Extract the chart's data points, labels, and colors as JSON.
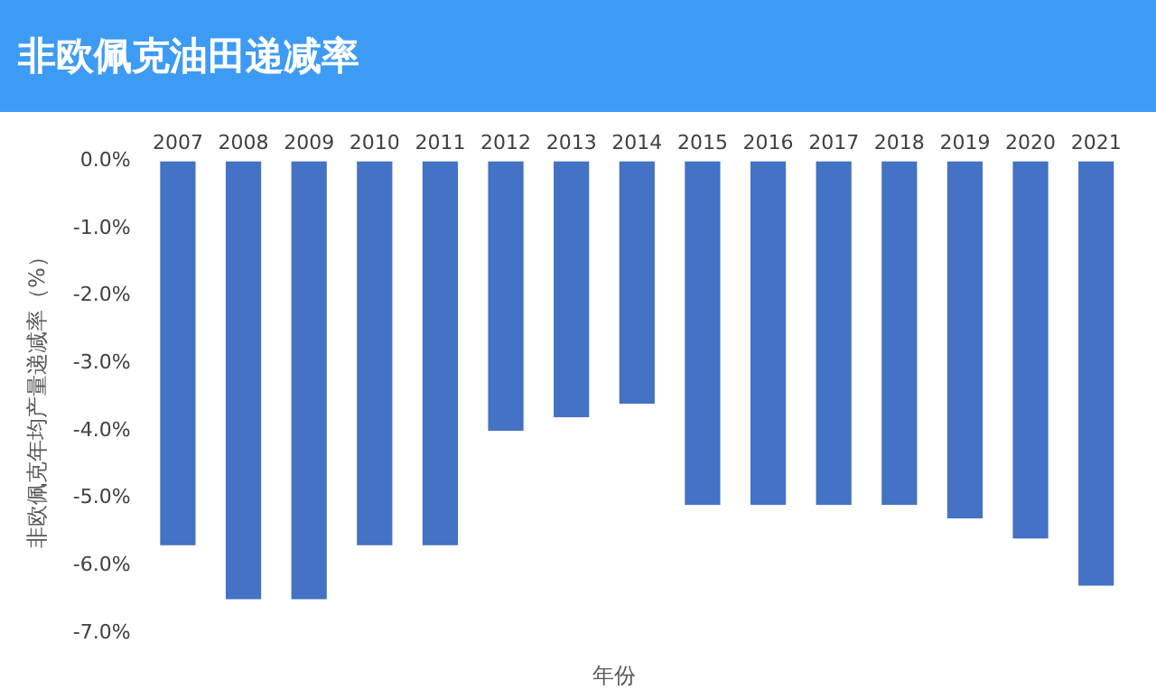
{
  "chart_data": {
    "type": "bar",
    "title": "非欧佩克油田递减率",
    "xlabel": "年份",
    "ylabel": "非欧佩克年均产量递减率（%）",
    "categories": [
      "2007",
      "2008",
      "2009",
      "2010",
      "2011",
      "2012",
      "2013",
      "2014",
      "2015",
      "2016",
      "2017",
      "2018",
      "2019",
      "2020",
      "2021"
    ],
    "values": [
      -5.7,
      -6.5,
      -6.5,
      -5.7,
      -5.7,
      -4.0,
      -3.8,
      -3.6,
      -5.1,
      -5.1,
      -5.1,
      -5.1,
      -5.3,
      -5.6,
      -6.3
    ],
    "color": "#4472c4",
    "ylim": [
      -7,
      0
    ],
    "yticks": [
      {
        "value": 0,
        "label": "0.0%"
      },
      {
        "value": -1,
        "label": "-1.0%"
      },
      {
        "value": -2,
        "label": "-2.0%"
      },
      {
        "value": -3,
        "label": "-3.0%"
      },
      {
        "value": -4,
        "label": "-4.0%"
      },
      {
        "value": -5,
        "label": "-5.0%"
      },
      {
        "value": -6,
        "label": "-6.0%"
      },
      {
        "value": -7,
        "label": "-7.0%"
      }
    ],
    "grid": false,
    "legend": false
  }
}
